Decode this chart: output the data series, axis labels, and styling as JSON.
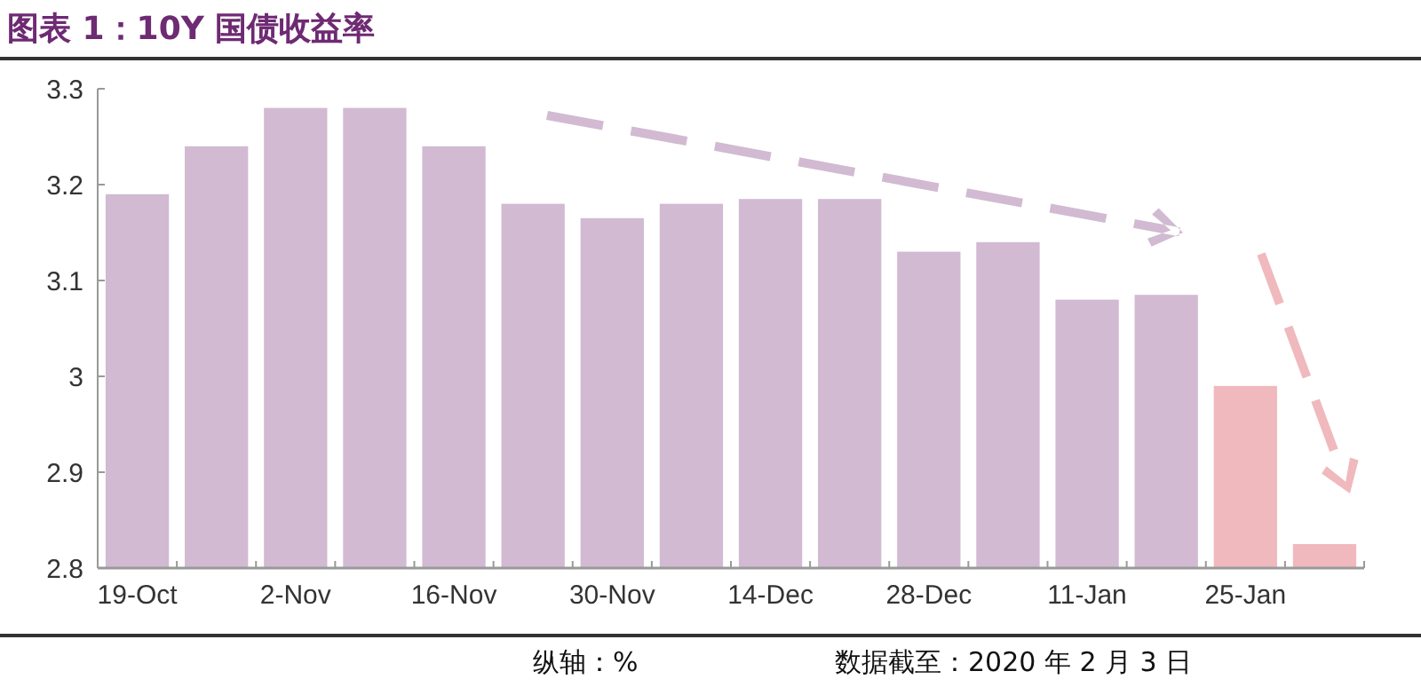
{
  "chart_data": {
    "type": "bar",
    "title": "图表 1：10Y 国债收益率",
    "categories": [
      "19-Oct",
      null,
      "2-Nov",
      null,
      "16-Nov",
      null,
      "30-Nov",
      null,
      "14-Dec",
      null,
      "28-Dec",
      null,
      "11-Jan",
      null,
      "25-Jan",
      null
    ],
    "values": [
      3.19,
      3.24,
      3.28,
      3.28,
      3.24,
      3.18,
      3.165,
      3.18,
      3.185,
      3.185,
      3.13,
      3.14,
      3.08,
      3.085,
      2.99,
      2.825
    ],
    "colors": [
      "#d1bad2",
      "#d1bad2",
      "#d1bad2",
      "#d1bad2",
      "#d1bad2",
      "#d1bad2",
      "#d1bad2",
      "#d1bad2",
      "#d1bad2",
      "#d1bad2",
      "#d1bad2",
      "#d1bad2",
      "#d1bad2",
      "#d1bad2",
      "#f0b9bd",
      "#f0b9bd"
    ],
    "ylim": [
      2.8,
      3.3
    ],
    "yticks": [
      2.8,
      2.9,
      3,
      3.1,
      3.2,
      3.3
    ],
    "grid": false,
    "annotations": [
      "纵轴：%",
      "数据截至：2020 年 2 月 3 日"
    ]
  }
}
